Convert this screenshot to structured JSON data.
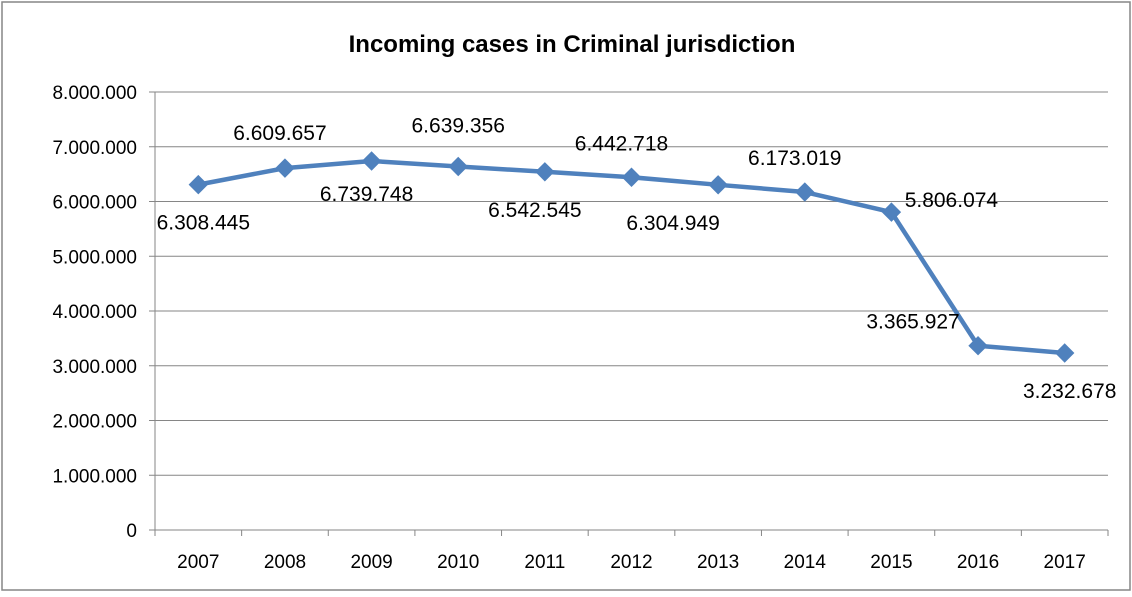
{
  "chart_data": {
    "type": "line",
    "title": "Incoming cases in Criminal jurisdiction",
    "xlabel": "",
    "ylabel": "",
    "categories": [
      "2007",
      "2008",
      "2009",
      "2010",
      "2011",
      "2012",
      "2013",
      "2014",
      "2015",
      "2016",
      "2017"
    ],
    "series": [
      {
        "name": "",
        "color": "#4f81bd",
        "values": [
          6308445,
          6609657,
          6739748,
          6639356,
          6542545,
          6442718,
          6304949,
          6173019,
          5806074,
          3365927,
          3232678
        ],
        "labels": [
          "6.308.445",
          "6.609.657",
          "6.739.748",
          "6.639.356",
          "6.542.545",
          "6.442.718",
          "6.304.949",
          "6.173.019",
          "5.806.074",
          "3.365.927",
          "3.232.678"
        ]
      }
    ],
    "ylim": [
      0,
      8000000
    ],
    "yticks": [
      0,
      1000000,
      2000000,
      3000000,
      4000000,
      5000000,
      6000000,
      7000000,
      8000000
    ],
    "ytick_labels": [
      "0",
      "1.000.000",
      "2.000.000",
      "3.000.000",
      "4.000.000",
      "5.000.000",
      "6.000.000",
      "7.000.000",
      "8.000.000"
    ],
    "grid": true,
    "legend": "none",
    "marker": "diamond"
  }
}
